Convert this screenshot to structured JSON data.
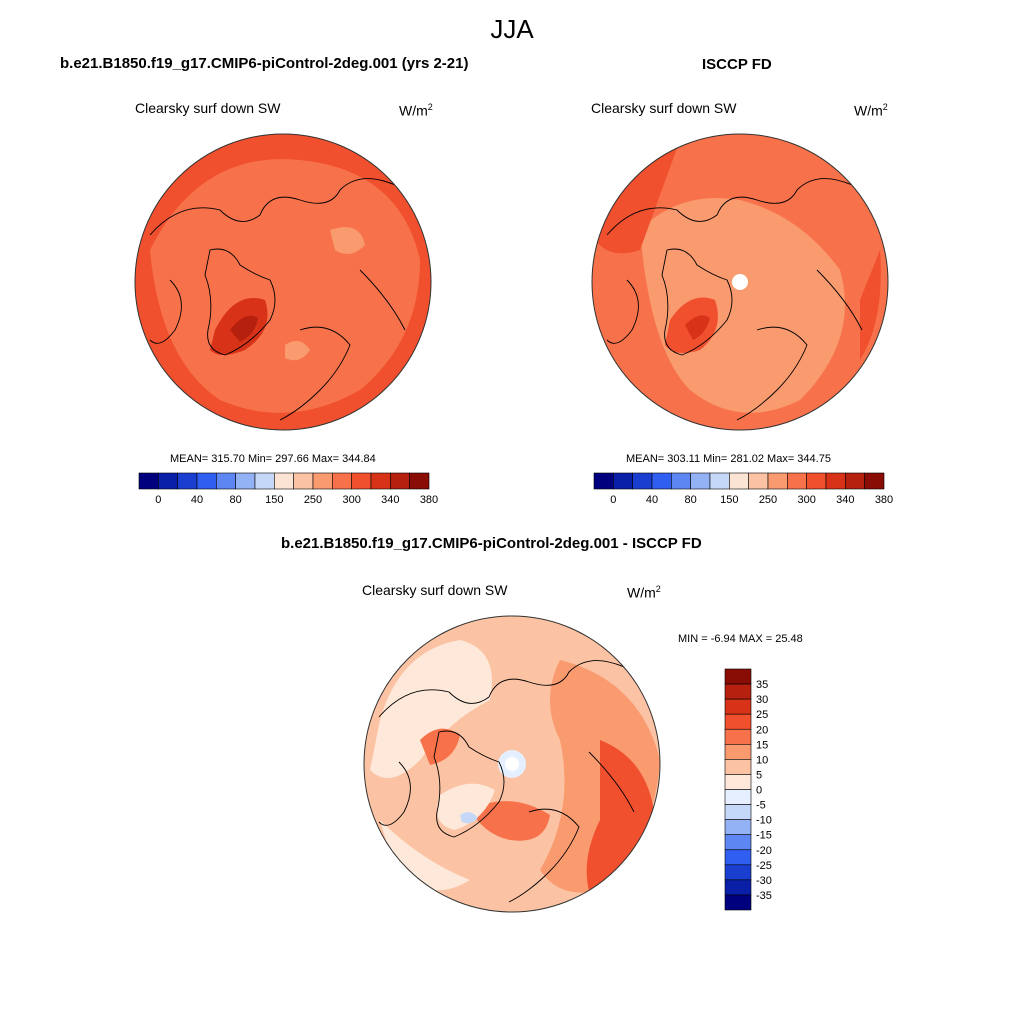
{
  "figure": {
    "title": "JJA"
  },
  "panels": [
    {
      "title": "b.e21.B1850.f19_g17.CMIP6-piControl-2deg.001 (yrs 2-21)",
      "variable": "Clearsky surf down SW",
      "units_base": "W/m",
      "units_exp": "2",
      "stats": "MEAN= 315.70  Min= 297.66  Max= 344.84"
    },
    {
      "title": "ISCCP FD",
      "variable": "Clearsky surf down SW",
      "units_base": "W/m",
      "units_exp": "2",
      "stats": "MEAN= 303.11  Min= 281.02  Max= 344.75"
    },
    {
      "title": "b.e21.B1850.f19_g17.CMIP6-piControl-2deg.001 - ISCCP FD",
      "variable": "Clearsky surf down SW",
      "units_base": "W/m",
      "units_exp": "2",
      "stats": "MIN =  -6.94 MAX =  25.48"
    }
  ],
  "colorbar_abs": {
    "labels": [
      "0",
      "40",
      "80",
      "150",
      "250",
      "300",
      "340",
      "380"
    ],
    "colors": [
      "#00007f",
      "#0a1fa8",
      "#1a3fd0",
      "#2f5ef0",
      "#5d86f3",
      "#93b2f6",
      "#c5d8fa",
      "#fbe4d3",
      "#fbc3a3",
      "#f99a6f",
      "#f7724a",
      "#f0502e",
      "#d83318",
      "#b5200f",
      "#8a0d05"
    ]
  },
  "colorbar_diff": {
    "labels": [
      "35",
      "30",
      "25",
      "20",
      "15",
      "10",
      "5",
      "0",
      "-5",
      "-10",
      "-15",
      "-20",
      "-25",
      "-30",
      "-35"
    ],
    "colors": [
      "#8a0d05",
      "#b5200f",
      "#d83318",
      "#f0502e",
      "#f7724a",
      "#f99a6f",
      "#fbc3a3",
      "#fde8d9",
      "#e6efff",
      "#c5d8fa",
      "#93b2f6",
      "#5d86f3",
      "#2f5ef0",
      "#1a3fd0",
      "#0a1fa8",
      "#00007f"
    ]
  }
}
